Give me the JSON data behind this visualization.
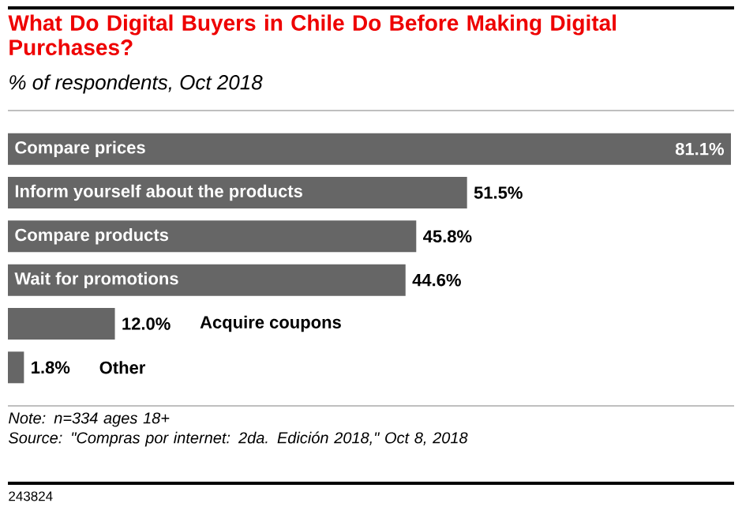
{
  "chart_data": {
    "type": "bar",
    "orientation": "horizontal",
    "title": "What Do Digital Buyers in Chile Do Before Making Digital Purchases?",
    "subtitle": "% of respondents, Oct 2018",
    "categories": [
      "Compare prices",
      "Inform yourself about the products",
      "Compare products",
      "Wait for promotions",
      "Acquire coupons",
      "Other"
    ],
    "values": [
      81.1,
      51.5,
      45.8,
      44.6,
      12.0,
      1.8
    ],
    "value_labels": [
      "81.1%",
      "51.5%",
      "45.8%",
      "44.6%",
      "12.0%",
      "1.8%"
    ],
    "color": "#666666",
    "annotations": [
      "Note: n=334 ages 18+",
      "Source: \"Compras por internet: 2da. Edición 2018,\" Oct 8, 2018",
      "243824"
    ]
  }
}
